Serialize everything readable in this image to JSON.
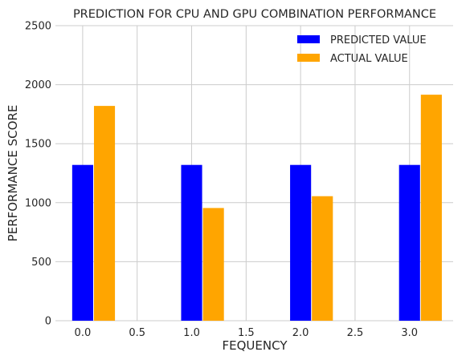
{
  "chart_data": {
    "type": "bar",
    "title": "PREDICTION FOR CPU AND GPU COMBINATION PERFORMANCE",
    "xlabel": "FEQUENCY",
    "ylabel": "PERFORMANCE SCORE",
    "xlim": [
      -0.25,
      3.4
    ],
    "ylim": [
      0,
      2500
    ],
    "xticks": [
      "0.0",
      "0.5",
      "1.0",
      "1.5",
      "2.0",
      "2.5",
      "3.0"
    ],
    "yticks": [
      "0",
      "500",
      "1000",
      "1500",
      "2000",
      "2500"
    ],
    "x": [
      0,
      1,
      2,
      3
    ],
    "bar_width": 0.2,
    "grid": true,
    "legend_position": "top-right",
    "series": [
      {
        "name": "PREDICTED VALUE",
        "color": "#0000ff",
        "values": [
          1320,
          1320,
          1320,
          1320
        ]
      },
      {
        "name": "ACTUAL VALUE",
        "color": "#ffa500",
        "values": [
          1820,
          955,
          1055,
          1915
        ]
      }
    ]
  }
}
